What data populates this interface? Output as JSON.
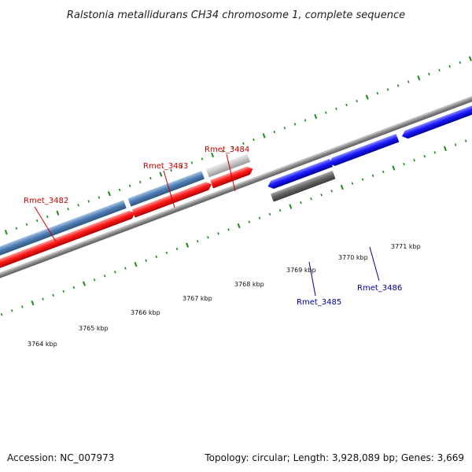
{
  "title": "Ralstonia metallidurans CH34 chromosome 1, complete sequence",
  "footer": {
    "accession": "Accession: NC_007973",
    "summary": "Topology: circular; Length: 3,928,089 bp; Genes: 3,669"
  },
  "colors": {
    "forward_cds": "#ff1a1a",
    "reverse_cds": "#1a1aff",
    "forward_gene": "#4f7fb5",
    "forward_pseudo": "#bdbdbd",
    "reverse_gene": "#666666",
    "backbone": "#8c8c8c",
    "ticks": "#1a8a1a",
    "forward_label": "#cc0000",
    "reverse_label": "#000099"
  },
  "kbp_labels": [
    "3764 kbp",
    "3765 kbp",
    "3766 kbp",
    "3767 kbp",
    "3768 kbp",
    "3769 kbp",
    "3770 kbp",
    "3771 kbp"
  ],
  "gene_labels": [
    "Rmet_3482",
    "Rmet_3483",
    "Rmet_3484",
    "Rmet_3485",
    "Rmet_3486"
  ]
}
